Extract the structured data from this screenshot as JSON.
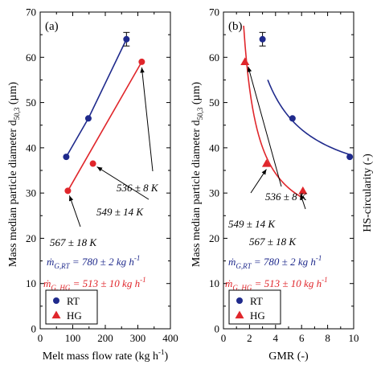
{
  "colors": {
    "rt": "#1f2a8c",
    "hg": "#e0262b",
    "axis": "#000000"
  },
  "chart_data": [
    {
      "type": "scatter",
      "panel_label": "(a)",
      "xlabel": "Melt mass flow rate (kg h",
      "xlabel_sup": "-1",
      "xlabel_end": ")",
      "ylabel": "Mass median particle diameter d",
      "ylabel_sub": "50,3",
      "ylabel_end": " (µm)",
      "xlim": [
        0,
        400
      ],
      "ylim": [
        0,
        70
      ],
      "xticks": [
        0,
        50,
        100,
        150,
        200,
        250,
        300,
        350,
        400
      ],
      "xticklabels": [
        "0",
        "",
        "100",
        "",
        "200",
        "",
        "300",
        "",
        "400"
      ],
      "yticks": [
        0,
        10,
        20,
        30,
        40,
        50,
        60,
        70
      ],
      "yticklabels": [
        "0",
        "10",
        "20",
        "30",
        "40",
        "50",
        "60",
        "70"
      ],
      "series": [
        {
          "name": "RT",
          "marker": "circle",
          "x": [
            80,
            148,
            265
          ],
          "y": [
            38,
            46.5,
            64
          ],
          "yerr": [
            0,
            0,
            1.5
          ]
        },
        {
          "name": "HG",
          "marker": "circle",
          "x": [
            85,
            162,
            312
          ],
          "y": [
            30.5,
            36.5,
            59
          ],
          "yerr": [
            0,
            0,
            0
          ]
        }
      ],
      "annotations": [
        {
          "text": "536 ± 8 K"
        },
        {
          "text": "549 ± 14 K"
        },
        {
          "text": "567 ± 18 K"
        },
        {
          "text": "ṁG,RT = 780 ± 2 kg h-1"
        },
        {
          "text": "ṁG, HG = 513 ± 10 kg h-1"
        }
      ],
      "legend": {
        "placement": "bottom-left",
        "entries": [
          "RT",
          "HG"
        ]
      }
    },
    {
      "type": "scatter",
      "panel_label": "(b)",
      "xlabel": "GMR (-)",
      "ylabel": "Mass median particle diameter d",
      "ylabel_sub": "50,3",
      "ylabel_end": " (µm)",
      "y2label": "HS-circularity (-)",
      "xlim": [
        0,
        10
      ],
      "ylim": [
        0,
        70
      ],
      "xticks": [
        0,
        1,
        2,
        3,
        4,
        5,
        6,
        7,
        8,
        9,
        10
      ],
      "xticklabels": [
        "0",
        "",
        "2",
        "",
        "4",
        "",
        "6",
        "",
        "8",
        "",
        "10"
      ],
      "yticks": [
        0,
        10,
        20,
        30,
        40,
        50,
        60,
        70
      ],
      "yticklabels": [
        "0",
        "10",
        "20",
        "30",
        "40",
        "50",
        "60",
        "70"
      ],
      "series": [
        {
          "name": "RT",
          "marker": "circle",
          "x": [
            3.0,
            5.3,
            9.7
          ],
          "y": [
            64,
            46.5,
            38
          ],
          "yerr": [
            1.5,
            0,
            0
          ]
        },
        {
          "name": "HG",
          "marker": "triangle",
          "x": [
            1.65,
            3.3,
            6.1
          ],
          "y": [
            59,
            36.5,
            30.5
          ],
          "yerr": [
            0,
            0,
            0
          ]
        }
      ],
      "annotations": [
        {
          "text": "536 ± 8 K"
        },
        {
          "text": "549 ± 14 K"
        },
        {
          "text": "567 ± 18 K"
        },
        {
          "text": "ṁG,RT = 780 ± 2 kg h-1"
        },
        {
          "text": "ṁG, HG = 513 ± 10 kg h-1"
        }
      ],
      "legend": {
        "placement": "bottom-left",
        "entries": [
          "RT",
          "HG"
        ]
      }
    }
  ]
}
